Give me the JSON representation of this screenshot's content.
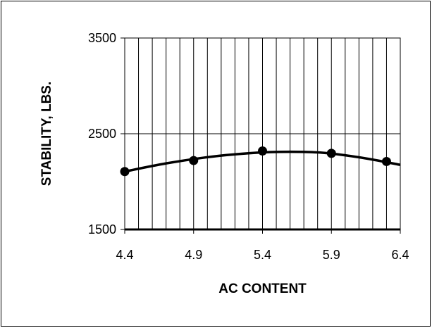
{
  "chart_data": {
    "type": "line",
    "title": "",
    "xlabel": "AC CONTENT",
    "ylabel": "STABILITY, LBS.",
    "xlim": [
      4.4,
      6.4
    ],
    "ylim": [
      1500,
      3500
    ],
    "x_ticks": [
      4.4,
      4.9,
      5.4,
      5.9,
      6.4
    ],
    "x_tick_labels": [
      "4.4",
      "4.9",
      "5.4",
      "5.9",
      "6.4"
    ],
    "y_ticks": [
      1500,
      2500,
      3500
    ],
    "y_tick_labels": [
      "1500",
      "2500",
      "3500"
    ],
    "x_minor_grid_step": 0.1,
    "grid": true,
    "legend": "none",
    "series": [
      {
        "type": "scatter",
        "points": [
          {
            "x": 4.4,
            "y": 2105
          },
          {
            "x": 4.9,
            "y": 2220
          },
          {
            "x": 5.4,
            "y": 2320
          },
          {
            "x": 5.9,
            "y": 2295
          },
          {
            "x": 6.3,
            "y": 2210
          }
        ],
        "color": "#000000"
      },
      {
        "type": "line",
        "points": [
          {
            "x": 4.4,
            "y": 2105
          },
          {
            "x": 4.7,
            "y": 2190
          },
          {
            "x": 5.0,
            "y": 2255
          },
          {
            "x": 5.2,
            "y": 2285
          },
          {
            "x": 5.4,
            "y": 2305
          },
          {
            "x": 5.6,
            "y": 2312
          },
          {
            "x": 5.8,
            "y": 2305
          },
          {
            "x": 6.0,
            "y": 2275
          },
          {
            "x": 6.2,
            "y": 2230
          },
          {
            "x": 6.4,
            "y": 2175
          }
        ],
        "color": "#000000"
      }
    ]
  }
}
